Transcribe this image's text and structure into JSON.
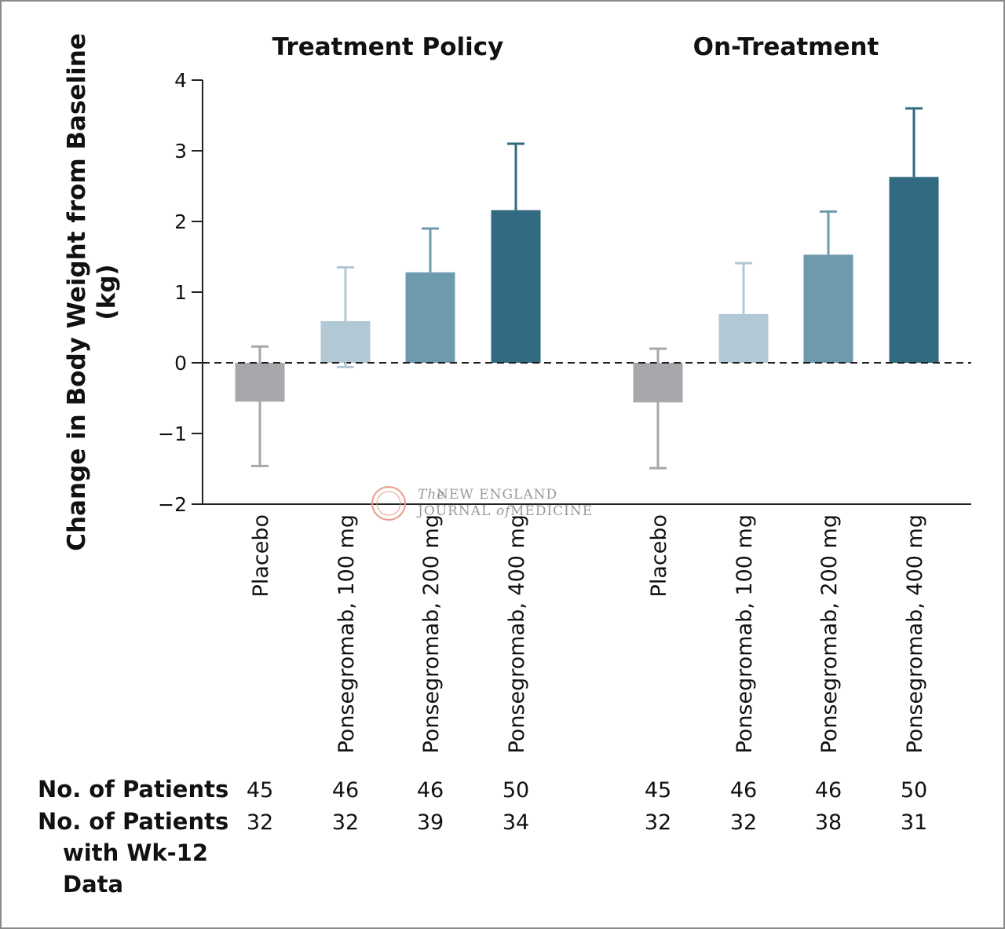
{
  "chart_data": {
    "type": "bar",
    "ylabel_line1": "Change in Body Weight from Baseline",
    "ylabel_line2": "(kg)",
    "ylim": [
      -2,
      4
    ],
    "yticks": [
      -2,
      -1,
      0,
      1,
      2,
      3,
      4
    ],
    "ytick_labels": [
      "−2",
      "−1",
      "0",
      "1",
      "2",
      "3",
      "4"
    ],
    "categories": [
      "Placebo",
      "Ponsegromab, 100 mg",
      "Ponsegromab, 200 mg",
      "Ponsegromab, 400 mg"
    ],
    "colors": [
      "#a6a8ab",
      "#b2c8d4",
      "#6e9aae",
      "#316a81"
    ],
    "reference_line": 0,
    "panels": [
      {
        "title": "Treatment Policy",
        "values": [
          -0.55,
          0.59,
          1.28,
          2.16
        ],
        "error_upper": [
          0.23,
          1.35,
          1.9,
          3.1
        ],
        "error_lower": [
          -1.46,
          -0.06,
          null,
          null
        ]
      },
      {
        "title": "On-Treatment",
        "values": [
          -0.56,
          0.69,
          1.53,
          2.63
        ],
        "error_upper": [
          0.2,
          1.41,
          2.14,
          3.6
        ],
        "error_lower": [
          -1.49,
          null,
          null,
          null
        ]
      }
    ]
  },
  "table": {
    "row1_label": "No. of Patients",
    "row2_label_lines": [
      "No. of Patients",
      "with Wk-12",
      "Data"
    ],
    "row1_values": [
      [
        "45",
        "46",
        "46",
        "50"
      ],
      [
        "45",
        "46",
        "46",
        "50"
      ]
    ],
    "row2_values": [
      [
        "32",
        "32",
        "39",
        "34"
      ],
      [
        "32",
        "32",
        "38",
        "31"
      ]
    ]
  },
  "watermark": {
    "line1_prefix": "The",
    "line1": "NEW ENGLAND",
    "line2_a": "JOURNAL",
    "line2_of": "of",
    "line2_b": "MEDICINE"
  }
}
